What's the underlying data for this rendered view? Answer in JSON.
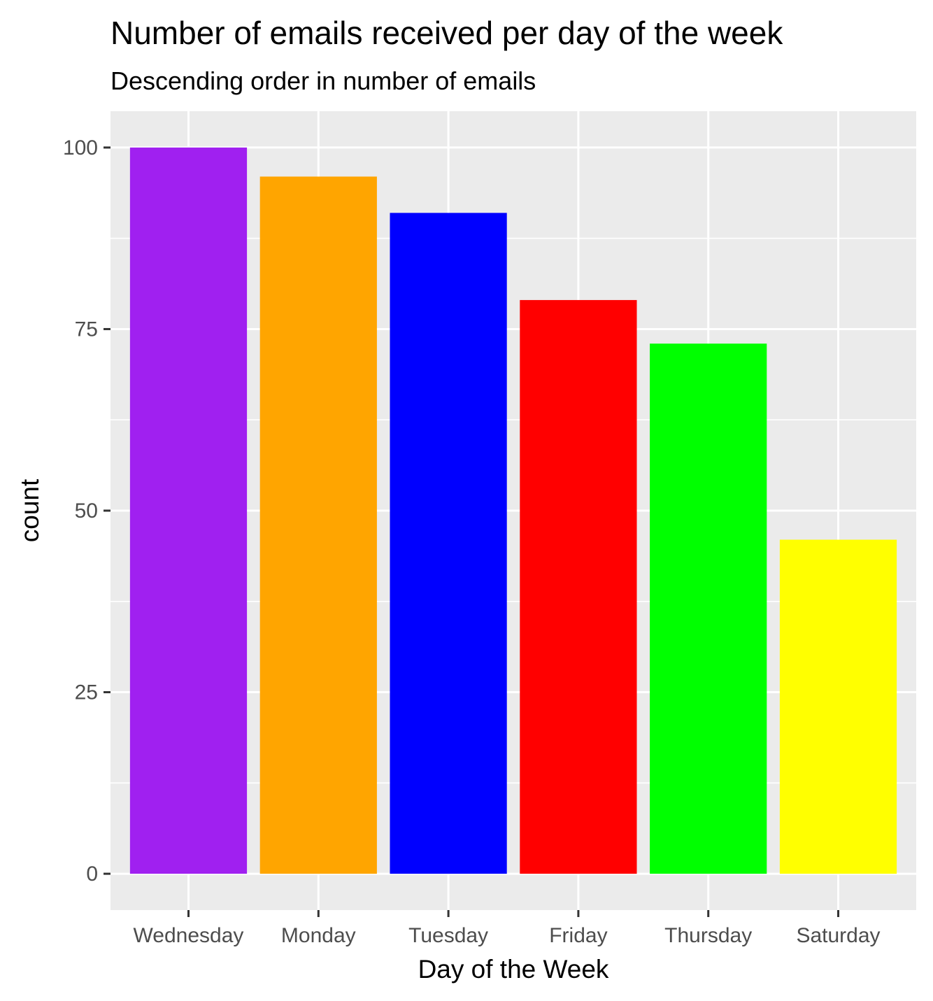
{
  "chart_data": {
    "type": "bar",
    "title": "Number of emails received per day of the week",
    "subtitle": "Descending order in number of emails",
    "xlabel": "Day of the Week",
    "ylabel": "count",
    "categories": [
      "Wednesday",
      "Monday",
      "Tuesday",
      "Friday",
      "Thursday",
      "Saturday"
    ],
    "values": [
      100,
      96,
      91,
      79,
      73,
      46
    ],
    "colors": [
      "#A020F0",
      "#FFA500",
      "#0000FF",
      "#FF0000",
      "#00FF00",
      "#FFFF00"
    ],
    "yticks": [
      0,
      25,
      50,
      75,
      100
    ],
    "ylim": [
      -5,
      105
    ],
    "grid": true,
    "panel_background": "#EBEBEB",
    "legend": "none"
  }
}
